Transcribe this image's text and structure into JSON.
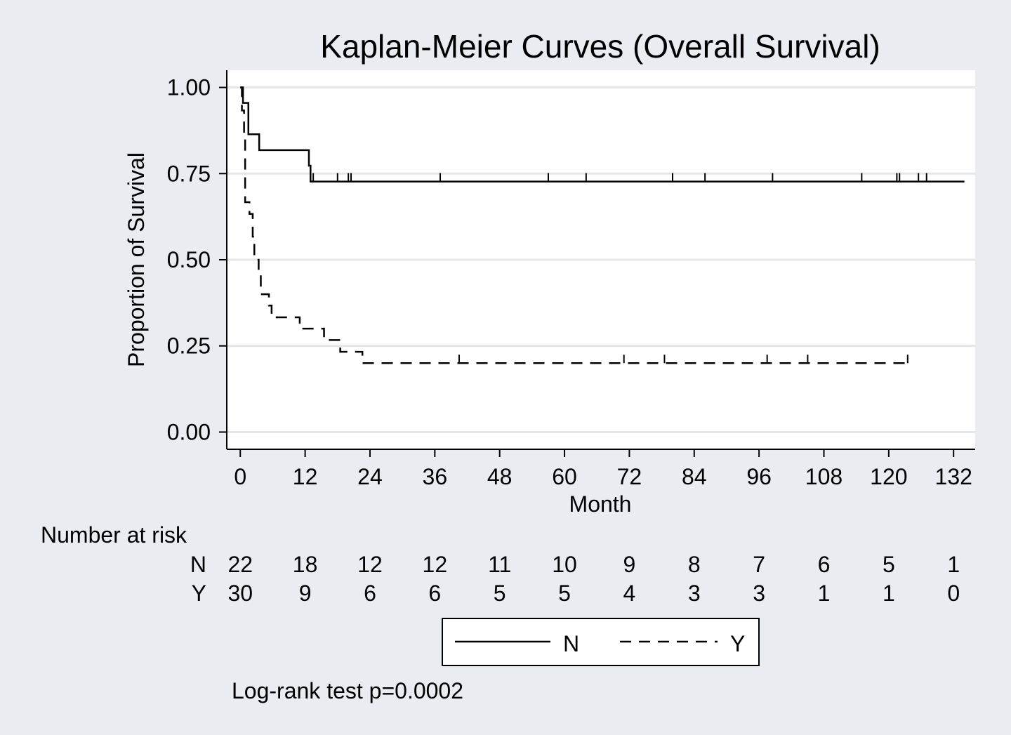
{
  "chart_data": {
    "type": "line",
    "title": "Kaplan-Meier Curves (Overall Survival)",
    "xlabel": "Month",
    "ylabel": "Proportion of Survival",
    "xlim": [
      -2.5,
      136
    ],
    "ylim": [
      -0.05,
      1.05
    ],
    "x_ticks": [
      0,
      12,
      24,
      36,
      48,
      60,
      72,
      84,
      96,
      108,
      120,
      132
    ],
    "y_ticks": [
      0,
      0.25,
      0.5,
      0.75,
      1.0
    ],
    "y_tick_labels": [
      "0.00",
      "0.25",
      "0.50",
      "0.75",
      "1.00"
    ],
    "grid": true,
    "series": [
      {
        "name": "N",
        "style": "solid",
        "steps": [
          [
            0,
            1.0
          ],
          [
            0.5,
            0.955
          ],
          [
            1.5,
            0.864
          ],
          [
            3.5,
            0.818
          ],
          [
            12.7,
            0.773
          ],
          [
            13,
            0.727
          ],
          [
            134,
            0.727
          ]
        ],
        "censored": [
          13.5,
          18,
          20,
          20.5,
          37,
          57,
          64,
          80,
          86,
          98.5,
          115,
          121.5,
          122,
          125.5,
          127
        ]
      },
      {
        "name": "Y",
        "style": "dashed",
        "steps": [
          [
            0,
            1.0
          ],
          [
            0.3,
            0.933
          ],
          [
            0.7,
            0.867
          ],
          [
            0.9,
            0.667
          ],
          [
            1.7,
            0.633
          ],
          [
            2.3,
            0.567
          ],
          [
            2.6,
            0.5
          ],
          [
            3.4,
            0.467
          ],
          [
            3.8,
            0.4
          ],
          [
            5.3,
            0.367
          ],
          [
            5.8,
            0.333
          ],
          [
            11,
            0.3
          ],
          [
            15.5,
            0.267
          ],
          [
            18.5,
            0.233
          ],
          [
            22.6,
            0.2
          ],
          [
            123.5,
            0.2
          ]
        ],
        "censored": [
          40.5,
          71,
          78.5,
          97.5,
          105,
          123.5
        ]
      }
    ],
    "risk_table": {
      "title": "Number at risk",
      "times": [
        0,
        12,
        24,
        36,
        48,
        60,
        72,
        84,
        96,
        108,
        120,
        132
      ],
      "rows": [
        {
          "label": "N",
          "values": [
            "22",
            "18",
            "12",
            "12",
            "11",
            "10",
            "9",
            "8",
            "7",
            "6",
            "5",
            "1"
          ]
        },
        {
          "label": "Y",
          "values": [
            "30",
            "9",
            "6",
            "6",
            "5",
            "5",
            "4",
            "3",
            "3",
            "1",
            "1",
            "0"
          ]
        }
      ]
    },
    "legend": {
      "position": "bottom",
      "entries": [
        {
          "label": "N",
          "style": "solid"
        },
        {
          "label": "Y",
          "style": "dashed"
        }
      ]
    },
    "annotation": "Log-rank test p=0.0002",
    "colors": {
      "background": "#e9edf2",
      "plot_area": "#ffffff",
      "grid": "#e4e7ea",
      "line": "#000000"
    }
  }
}
